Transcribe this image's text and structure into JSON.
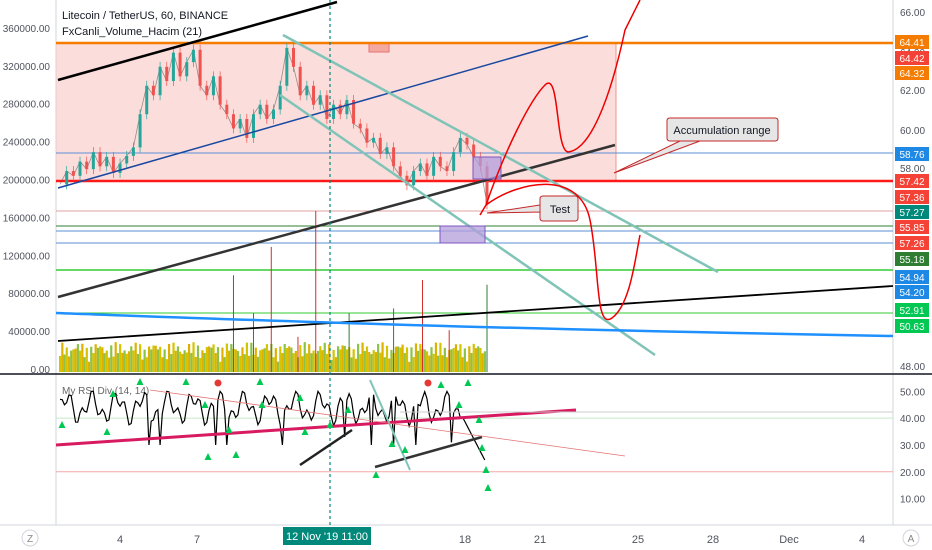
{
  "header": {
    "title": "Litecoin / TetherUS, 60, BINANCE",
    "indicator": "FxCanli_Volume_Hacim (21)",
    "rsi_label": "My RSI Div (14, 14)"
  },
  "colors": {
    "up": "#26a69a",
    "down": "#ef5350",
    "range_fill": "#f8c6c3",
    "red_line": "#ff1a1a",
    "blue_line": "#1848a0",
    "teal_line": "#80c4b8",
    "green_line": "#33cc33",
    "cyan_line": "#1e90ff",
    "purple_box": "#b39ddb"
  },
  "chart_data": {
    "type": "line",
    "title": "Litecoin / TetherUS, 60, BINANCE",
    "x_ticks": [
      "4",
      "7",
      "12 Nov '19",
      "11:00",
      "18",
      "21",
      "25",
      "28",
      "Dec",
      "4"
    ],
    "right_axis_ticks": [
      66.0,
      64.0,
      62.0,
      60.0,
      58.0,
      48.0
    ],
    "right_axis_badges": [
      {
        "value": "64.41",
        "color": "#f57c00"
      },
      {
        "value": "64.42",
        "color": "#f44336"
      },
      {
        "value": "64.32",
        "color": "#f57c00"
      },
      {
        "value": "58.76",
        "color": "#1e88e5"
      },
      {
        "value": "57.42",
        "color": "#f44336"
      },
      {
        "value": "57.36",
        "color": "#f44336"
      },
      {
        "value": "57.27",
        "color": "#00897b"
      },
      {
        "value": "55.85",
        "color": "#f44336"
      },
      {
        "value": "57.26",
        "color": "#f44336"
      },
      {
        "value": "55.18",
        "color": "#2e7d32"
      },
      {
        "value": "54.94",
        "color": "#1e88e5"
      },
      {
        "value": "54.20",
        "color": "#1e88e5"
      },
      {
        "value": "52.91",
        "color": "#00c853"
      },
      {
        "value": "50.63",
        "color": "#00c853"
      }
    ],
    "volume_axis_ticks": [
      "360000.00",
      "320000.00",
      "280000.00",
      "240000.00",
      "200000.00",
      "160000.00",
      "120000.00",
      "80000.00",
      "40000.00",
      "0.00"
    ],
    "volume_ylim": [
      0,
      380000
    ],
    "rsi_axis_ticks": [
      50.0,
      40.0,
      30.0,
      20.0,
      10.0
    ],
    "rsi_ylim": [
      5,
      52
    ],
    "annotations": [
      "Accumulation range",
      "Test"
    ],
    "price_path": [
      [
        0,
        196000
      ],
      [
        3,
        210000
      ],
      [
        6,
        205000
      ],
      [
        9,
        220000
      ],
      [
        12,
        212000
      ],
      [
        15,
        230000
      ],
      [
        18,
        215000
      ],
      [
        21,
        225000
      ],
      [
        24,
        208000
      ],
      [
        27,
        218000
      ],
      [
        30,
        226000
      ],
      [
        33,
        235000
      ],
      [
        36,
        270000
      ],
      [
        39,
        300000
      ],
      [
        42,
        290000
      ],
      [
        45,
        320000
      ],
      [
        48,
        305000
      ],
      [
        51,
        335000
      ],
      [
        54,
        310000
      ],
      [
        57,
        325000
      ],
      [
        60,
        338000
      ],
      [
        63,
        300000
      ],
      [
        66,
        290000
      ],
      [
        69,
        310000
      ],
      [
        72,
        280000
      ],
      [
        75,
        270000
      ],
      [
        78,
        255000
      ],
      [
        81,
        265000
      ],
      [
        84,
        245000
      ],
      [
        87,
        270000
      ],
      [
        90,
        280000
      ],
      [
        93,
        265000
      ],
      [
        96,
        275000
      ],
      [
        99,
        300000
      ],
      [
        102,
        340000
      ],
      [
        105,
        320000
      ],
      [
        108,
        290000
      ],
      [
        111,
        300000
      ],
      [
        114,
        280000
      ],
      [
        117,
        290000
      ],
      [
        120,
        265000
      ],
      [
        123,
        280000
      ],
      [
        126,
        270000
      ],
      [
        129,
        285000
      ],
      [
        132,
        260000
      ],
      [
        135,
        255000
      ],
      [
        138,
        240000
      ],
      [
        141,
        245000
      ],
      [
        144,
        228000
      ],
      [
        147,
        235000
      ],
      [
        150,
        215000
      ],
      [
        153,
        205000
      ],
      [
        156,
        195000
      ],
      [
        159,
        210000
      ],
      [
        162,
        218000
      ],
      [
        165,
        205000
      ],
      [
        168,
        225000
      ],
      [
        171,
        215000
      ],
      [
        174,
        210000
      ],
      [
        177,
        230000
      ],
      [
        180,
        245000
      ],
      [
        183,
        238000
      ],
      [
        186,
        225000
      ],
      [
        189,
        215000
      ],
      [
        192,
        175000
      ]
    ],
    "volume_spikes": [
      {
        "x": 78,
        "v": 100000
      },
      {
        "x": 87,
        "v": 60000
      },
      {
        "x": 95,
        "v": 130000
      },
      {
        "x": 107,
        "v": 35000
      },
      {
        "x": 115,
        "v": 168000
      },
      {
        "x": 130,
        "v": 60000
      },
      {
        "x": 150,
        "v": 65000
      },
      {
        "x": 163,
        "v": 95000
      },
      {
        "x": 175,
        "v": 42000
      },
      {
        "x": 192,
        "v": 90000
      }
    ]
  }
}
